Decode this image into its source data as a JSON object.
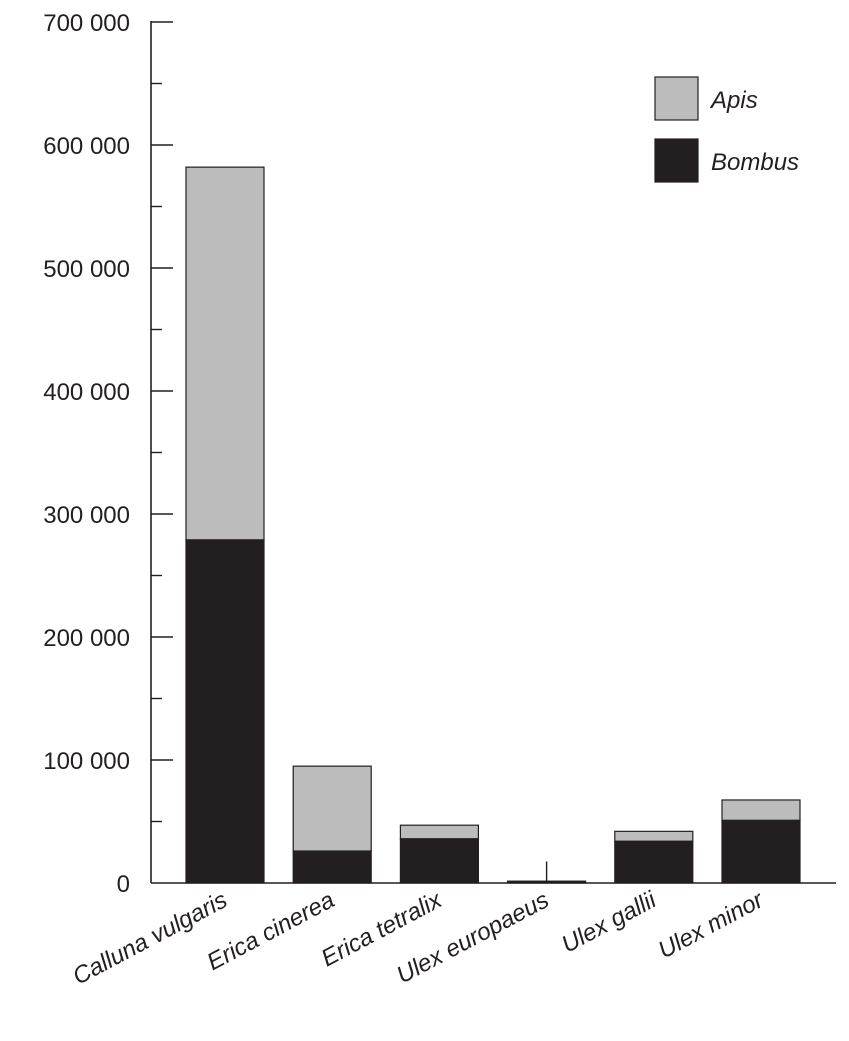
{
  "chart_data": {
    "type": "bar",
    "stacked": true,
    "categories": [
      "Calluna vulgaris",
      "Erica cinerea",
      "Erica tetralix",
      "Ulex europaeus",
      "Ulex gallii",
      "Ulex minor"
    ],
    "series": [
      {
        "name": "Bombus",
        "color": "#231f20",
        "values": [
          279000,
          26000,
          36000,
          1500,
          34000,
          51000
        ]
      },
      {
        "name": "Apis",
        "color": "#bcbcbc",
        "values": [
          303000,
          69000,
          11000,
          0,
          8000,
          16500
        ]
      }
    ],
    "error_bars": [
      null,
      null,
      null,
      16000,
      null,
      null
    ],
    "title": "",
    "xlabel": "",
    "ylabel": "",
    "ylim": [
      0,
      700000
    ],
    "y_ticks": [
      0,
      100000,
      200000,
      300000,
      400000,
      500000,
      600000,
      700000
    ],
    "y_tick_labels": [
      "0",
      "100 000",
      "200 000",
      "300 000",
      "400 000",
      "500 000",
      "600 000",
      "700 000"
    ],
    "y_minor_step": 50000,
    "legend_order": [
      "Apis",
      "Bombus"
    ],
    "legend_position": "top-right",
    "grid": false
  }
}
